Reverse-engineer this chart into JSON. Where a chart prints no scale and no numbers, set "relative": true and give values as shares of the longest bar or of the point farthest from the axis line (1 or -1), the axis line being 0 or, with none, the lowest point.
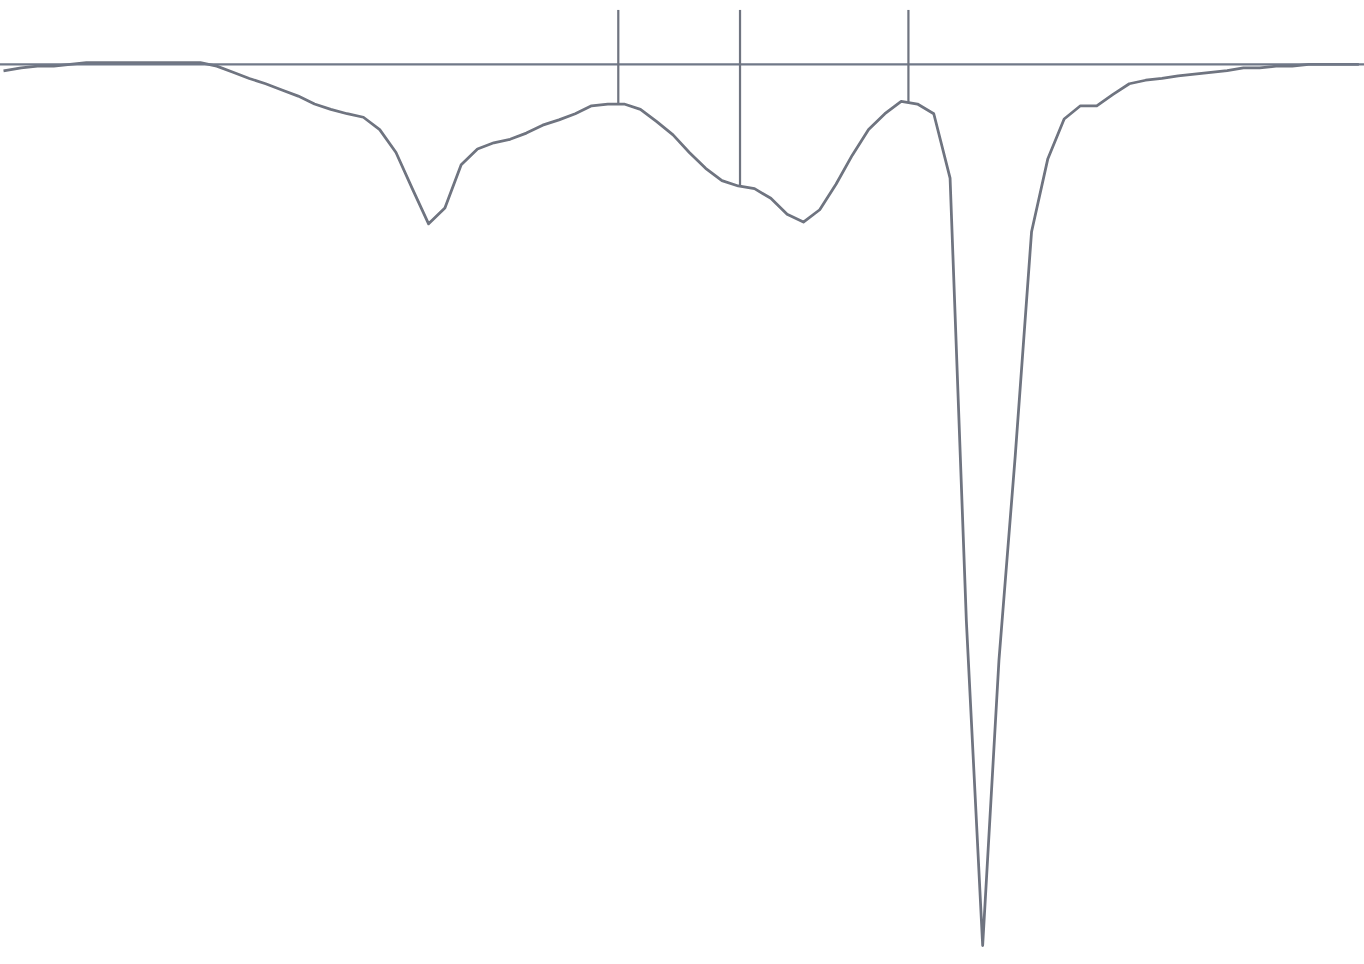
{
  "chart_data": {
    "type": "line",
    "relative": true,
    "categories": [
      null,
      null,
      null,
      null,
      null,
      null,
      null,
      null,
      null,
      null,
      null,
      null,
      null,
      null,
      null,
      null,
      null,
      null,
      null,
      null,
      null,
      null,
      null,
      null,
      null,
      null,
      null,
      null,
      null,
      null,
      null,
      null,
      null,
      null,
      null,
      null,
      null,
      null,
      null,
      null,
      null,
      null,
      null,
      null,
      null,
      null,
      null,
      null,
      null,
      null,
      null,
      null,
      null,
      null,
      null,
      null,
      null,
      null,
      null,
      null,
      null,
      null,
      null,
      null,
      null,
      null,
      null,
      null,
      null,
      null,
      null,
      null,
      null,
      null,
      null,
      null,
      null,
      null,
      null,
      null,
      null,
      null,
      null,
      null
    ],
    "series": [
      {
        "color": "#6f7480",
        "values": [
          -0.007,
          -0.004,
          -0.002,
          -0.002,
          0,
          0.002,
          0.002,
          0.002,
          0.002,
          0.002,
          0.002,
          0.002,
          0.002,
          -0.002,
          -0.009,
          -0.016,
          -0.022,
          -0.029,
          -0.036,
          -0.045,
          -0.051,
          -0.056,
          -0.06,
          -0.074,
          -0.1,
          -0.141,
          -0.181,
          -0.163,
          -0.114,
          -0.096,
          -0.089,
          -0.085,
          -0.078,
          -0.069,
          -0.063,
          -0.056,
          -0.047,
          -0.045,
          -0.045,
          -0.051,
          -0.065,
          -0.08,
          -0.1,
          -0.118,
          -0.132,
          -0.138,
          -0.141,
          -0.152,
          -0.17,
          -0.179,
          -0.165,
          -0.136,
          -0.103,
          -0.074,
          -0.056,
          -0.042,
          -0.045,
          -0.056,
          -0.129,
          -0.632,
          -1,
          -0.676,
          -0.444,
          -0.19,
          -0.107,
          -0.062,
          -0.047,
          -0.047,
          -0.034,
          -0.022,
          -0.018,
          -0.016,
          -0.013,
          -0.011,
          -0.009,
          -0.007,
          -0.004,
          -0.004,
          -0.002,
          -0.002,
          0,
          0,
          0,
          0
        ]
      }
    ],
    "tick_labels": false
  }
}
